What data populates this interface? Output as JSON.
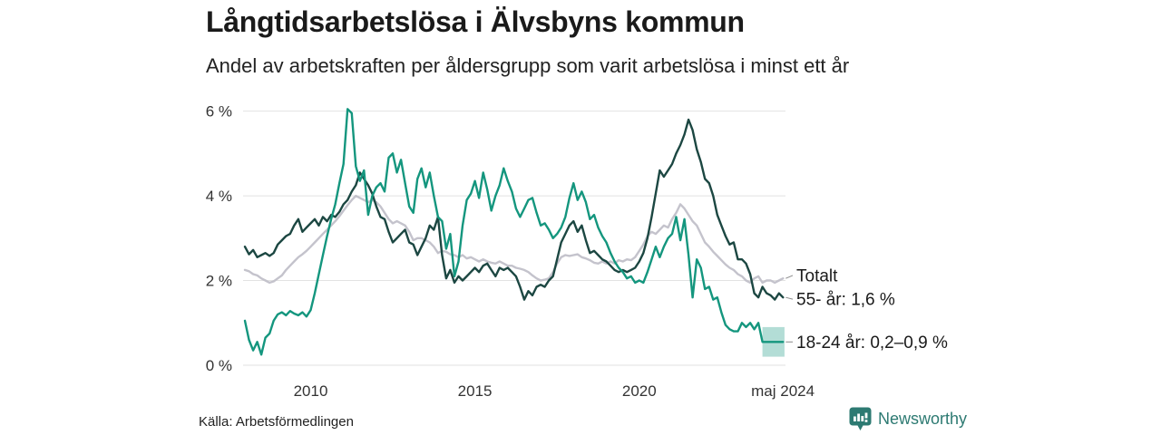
{
  "header": {
    "title": "Långtidsarbetslösa i Älvsbyns kommun",
    "subtitle": "Andel av arbetskraften per åldersgrupp som varit arbetslösa i minst ett år"
  },
  "footer": {
    "source": "Källa: Arbetsförmedlingen",
    "brand": "Newsworthy",
    "logo_icon": "bar-chart-speech-bubble"
  },
  "chart_data": {
    "type": "line",
    "title": "Långtidsarbetslösa i Älvsbyns kommun",
    "subtitle": "Andel av arbetskraften per åldersgrupp som varit arbetslösa i minst ett år",
    "unit": "%",
    "grid": "horizontal",
    "legend_position": "end-of-line-labels",
    "xlim": [
      2008,
      2024.45
    ],
    "ylim": [
      0,
      6.12
    ],
    "x_ticks": [
      {
        "x": 2010,
        "label": "2010"
      },
      {
        "x": 2015,
        "label": "2015"
      },
      {
        "x": 2020,
        "label": "2020"
      },
      {
        "x": 2024.37,
        "label": "maj 2024"
      }
    ],
    "y_ticks": [
      {
        "v": 0,
        "label": "0 %"
      },
      {
        "v": 2,
        "label": "2 %"
      },
      {
        "v": 4,
        "label": "4 %"
      },
      {
        "v": 6,
        "label": "6 %"
      }
    ],
    "colors": {
      "grid": "#e2e2e2",
      "axis": "#333333",
      "label": "#1a1a1a",
      "connector": "#8a8a8a"
    },
    "x": [
      2008,
      2008.125,
      2008.25,
      2008.375,
      2008.5,
      2008.625,
      2008.75,
      2008.875,
      2009,
      2009.125,
      2009.25,
      2009.375,
      2009.5,
      2009.625,
      2009.75,
      2009.875,
      2010,
      2010.125,
      2010.25,
      2010.375,
      2010.5,
      2010.625,
      2010.75,
      2010.875,
      2011,
      2011.125,
      2011.25,
      2011.375,
      2011.5,
      2011.625,
      2011.75,
      2011.875,
      2012,
      2012.125,
      2012.25,
      2012.375,
      2012.5,
      2012.625,
      2012.75,
      2012.875,
      2013,
      2013.125,
      2013.25,
      2013.375,
      2013.5,
      2013.625,
      2013.75,
      2013.875,
      2014,
      2014.125,
      2014.25,
      2014.375,
      2014.5,
      2014.625,
      2014.75,
      2014.875,
      2015,
      2015.125,
      2015.25,
      2015.375,
      2015.5,
      2015.625,
      2015.75,
      2015.875,
      2016,
      2016.125,
      2016.25,
      2016.375,
      2016.5,
      2016.625,
      2016.75,
      2016.875,
      2017,
      2017.125,
      2017.25,
      2017.375,
      2017.5,
      2017.625,
      2017.75,
      2017.875,
      2018,
      2018.125,
      2018.25,
      2018.375,
      2018.5,
      2018.625,
      2018.75,
      2018.875,
      2019,
      2019.125,
      2019.25,
      2019.375,
      2019.5,
      2019.625,
      2019.75,
      2019.875,
      2020,
      2020.125,
      2020.25,
      2020.375,
      2020.5,
      2020.625,
      2020.75,
      2020.875,
      2021,
      2021.125,
      2021.25,
      2021.375,
      2021.5,
      2021.625,
      2021.75,
      2021.875,
      2022,
      2022.125,
      2022.25,
      2022.375,
      2022.5,
      2022.625,
      2022.75,
      2022.875,
      2023,
      2023.125,
      2023.25,
      2023.375,
      2023.5,
      2023.625,
      2023.75,
      2023.875,
      2024,
      2024.125,
      2024.25,
      2024.375
    ],
    "series": [
      {
        "name": "Totalt",
        "slug": "totalt",
        "color": "#c4c3cc",
        "values": [
          2.25,
          2.22,
          2.15,
          2.12,
          2.05,
          2.0,
          1.95,
          1.98,
          2.05,
          2.12,
          2.25,
          2.35,
          2.45,
          2.55,
          2.62,
          2.7,
          2.8,
          2.9,
          3.0,
          3.1,
          3.2,
          3.3,
          3.4,
          3.52,
          3.65,
          3.78,
          3.9,
          4.0,
          3.95,
          3.9,
          3.85,
          3.9,
          3.85,
          3.75,
          3.6,
          3.45,
          3.35,
          3.4,
          3.35,
          3.3,
          3.15,
          2.95,
          3.0,
          3.0,
          2.95,
          2.9,
          2.8,
          2.65,
          2.7,
          2.68,
          2.62,
          2.6,
          2.55,
          2.6,
          2.52,
          2.55,
          2.5,
          2.45,
          2.5,
          2.45,
          2.42,
          2.4,
          2.45,
          2.4,
          2.35,
          2.35,
          2.3,
          2.28,
          2.25,
          2.2,
          2.12,
          2.05,
          2.0,
          2.02,
          2.05,
          2.2,
          2.4,
          2.55,
          2.6,
          2.58,
          2.6,
          2.62,
          2.55,
          2.52,
          2.48,
          2.42,
          2.4,
          2.45,
          2.4,
          2.45,
          2.4,
          2.48,
          2.45,
          2.5,
          2.48,
          2.55,
          2.7,
          2.85,
          3.05,
          3.15,
          3.1,
          3.2,
          3.3,
          3.25,
          3.45,
          3.6,
          3.8,
          3.7,
          3.55,
          3.4,
          3.3,
          3.1,
          2.9,
          2.8,
          2.68,
          2.58,
          2.48,
          2.38,
          2.3,
          2.25,
          2.15,
          2.1,
          2.0,
          1.95,
          2.05,
          2.1,
          1.95,
          2.0,
          2.0,
          1.95,
          2.0,
          2.05
        ]
      },
      {
        "name": "55- år",
        "slug": "55-ar",
        "color": "#1c4742",
        "values": [
          2.8,
          2.62,
          2.72,
          2.55,
          2.6,
          2.65,
          2.58,
          2.65,
          2.85,
          2.95,
          3.05,
          3.1,
          3.3,
          3.45,
          3.15,
          3.25,
          3.35,
          3.45,
          3.3,
          3.5,
          3.4,
          3.55,
          3.5,
          3.62,
          3.8,
          3.9,
          4.1,
          4.25,
          4.55,
          4.4,
          4.25,
          4.05,
          3.75,
          3.5,
          3.45,
          3.15,
          2.9,
          3.0,
          3.1,
          3.2,
          2.9,
          2.85,
          2.6,
          2.8,
          3.0,
          3.3,
          3.2,
          3.5,
          2.6,
          2.05,
          2.25,
          1.95,
          2.1,
          2.0,
          2.1,
          2.2,
          2.3,
          2.2,
          2.35,
          2.4,
          2.25,
          2.1,
          2.3,
          2.25,
          2.3,
          2.2,
          2.1,
          1.85,
          1.55,
          1.75,
          1.65,
          1.85,
          1.9,
          1.85,
          2.0,
          2.1,
          2.5,
          2.9,
          3.1,
          3.3,
          3.4,
          3.15,
          3.3,
          2.95,
          2.65,
          2.7,
          2.6,
          2.5,
          2.45,
          2.35,
          2.25,
          2.2,
          2.25,
          2.2,
          2.25,
          2.3,
          2.45,
          2.65,
          3.0,
          3.5,
          4.05,
          4.6,
          4.45,
          4.6,
          4.75,
          5.0,
          5.2,
          5.45,
          5.8,
          5.55,
          5.1,
          4.8,
          4.4,
          4.3,
          4.0,
          3.55,
          3.3,
          3.05,
          2.85,
          2.9,
          2.5,
          2.5,
          2.4,
          2.15,
          1.7,
          1.6,
          1.85,
          1.7,
          1.65,
          1.55,
          1.7,
          1.6
        ]
      },
      {
        "name": "18-24 år",
        "slug": "18-24-ar",
        "color": "#14967e",
        "band": {
          "x0": 2023.75,
          "x1": 2024.42,
          "y0": 0.2,
          "y1": 0.9
        },
        "values": [
          1.05,
          0.6,
          0.35,
          0.55,
          0.25,
          0.65,
          0.75,
          1.05,
          1.2,
          1.25,
          1.18,
          1.28,
          1.22,
          1.18,
          1.25,
          1.15,
          1.3,
          1.7,
          2.15,
          2.6,
          3.05,
          3.45,
          3.8,
          4.3,
          4.75,
          6.05,
          5.95,
          4.7,
          4.35,
          4.6,
          3.55,
          4.0,
          4.2,
          4.3,
          4.1,
          4.9,
          5.0,
          4.55,
          4.85,
          4.3,
          3.75,
          3.6,
          4.4,
          4.65,
          4.2,
          4.55,
          4.0,
          3.5,
          3.4,
          2.75,
          3.1,
          2.1,
          2.45,
          3.3,
          3.9,
          4.05,
          4.35,
          3.95,
          4.55,
          4.15,
          3.65,
          4.0,
          4.25,
          4.65,
          4.35,
          4.1,
          3.7,
          3.5,
          3.7,
          3.9,
          3.95,
          3.6,
          3.3,
          3.35,
          3.2,
          3.0,
          3.1,
          3.25,
          3.5,
          3.95,
          4.3,
          3.9,
          4.1,
          3.85,
          3.45,
          3.55,
          3.25,
          3.05,
          2.9,
          2.65,
          2.45,
          2.3,
          2.2,
          2.05,
          2.1,
          1.95,
          2.0,
          1.95,
          2.2,
          2.5,
          2.8,
          2.55,
          2.8,
          3.0,
          3.1,
          3.5,
          2.95,
          3.45,
          2.6,
          1.6,
          2.5,
          2.3,
          1.8,
          1.85,
          1.55,
          1.6,
          1.25,
          0.95,
          0.85,
          0.8,
          0.8,
          1.0,
          0.9,
          1.0,
          0.85,
          1.0,
          0.55,
          0.55,
          0.55,
          0.55,
          0.55,
          0.55
        ]
      }
    ],
    "annotations": [
      {
        "text": "Totalt",
        "series": "totalt",
        "value": 2.05,
        "label_y": 2.12
      },
      {
        "text": "55- år: 1,6 %",
        "series": "55-ar",
        "value": 1.6,
        "label_y": 1.56
      },
      {
        "text": "18-24 år: 0,2–0,9 %",
        "series": "18-24-ar",
        "value": 0.55,
        "label_y": 0.55
      }
    ]
  }
}
